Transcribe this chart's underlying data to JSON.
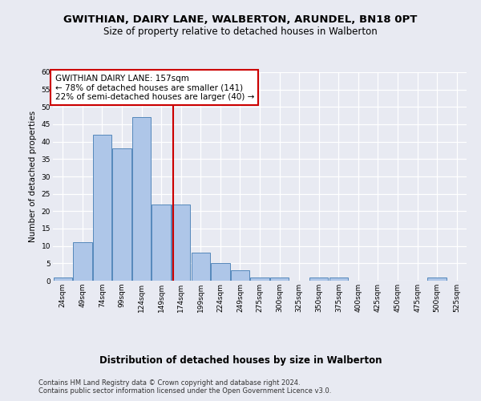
{
  "title": "GWITHIAN, DAIRY LANE, WALBERTON, ARUNDEL, BN18 0PT",
  "subtitle": "Size of property relative to detached houses in Walberton",
  "xlabel": "Distribution of detached houses by size in Walberton",
  "ylabel": "Number of detached properties",
  "categories": [
    "24sqm",
    "49sqm",
    "74sqm",
    "99sqm",
    "124sqm",
    "149sqm",
    "174sqm",
    "199sqm",
    "224sqm",
    "249sqm",
    "275sqm",
    "300sqm",
    "325sqm",
    "350sqm",
    "375sqm",
    "400sqm",
    "425sqm",
    "450sqm",
    "475sqm",
    "500sqm",
    "525sqm"
  ],
  "values": [
    1,
    11,
    42,
    38,
    47,
    22,
    22,
    8,
    5,
    3,
    1,
    1,
    0,
    1,
    1,
    0,
    0,
    0,
    0,
    1,
    0
  ],
  "bar_color": "#aec6e8",
  "bar_edge_color": "#5588bb",
  "bar_linewidth": 0.7,
  "vline_x": 5.62,
  "vline_color": "#cc0000",
  "vline_linewidth": 1.5,
  "annotation_text": "GWITHIAN DAIRY LANE: 157sqm\n← 78% of detached houses are smaller (141)\n22% of semi-detached houses are larger (40) →",
  "annotation_box_edge_color": "#cc0000",
  "annotation_fontsize": 7.5,
  "ylim": [
    0,
    60
  ],
  "yticks": [
    0,
    5,
    10,
    15,
    20,
    25,
    30,
    35,
    40,
    45,
    50,
    55,
    60
  ],
  "background_color": "#e8eaf2",
  "plot_background": "#e8eaf2",
  "grid_color": "#ffffff",
  "title_fontsize": 9.5,
  "subtitle_fontsize": 8.5,
  "xlabel_fontsize": 8.5,
  "ylabel_fontsize": 7.5,
  "tick_fontsize": 6.5,
  "footer_text": "Contains HM Land Registry data © Crown copyright and database right 2024.\nContains public sector information licensed under the Open Government Licence v3.0.",
  "footer_fontsize": 6.0
}
